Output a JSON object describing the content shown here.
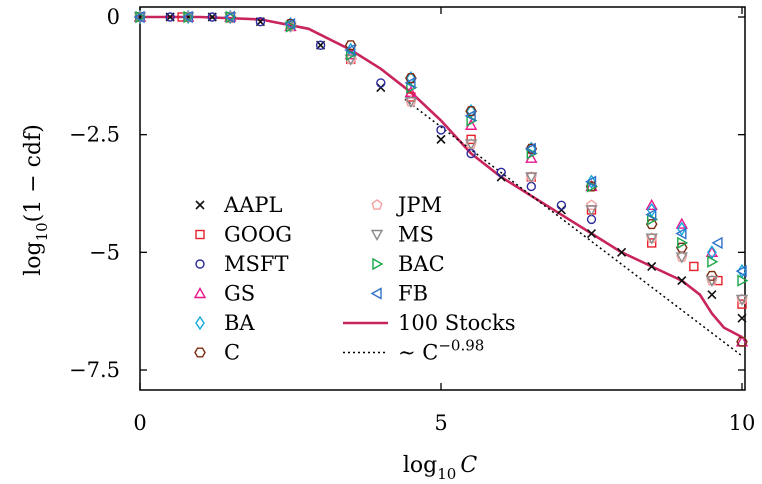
{
  "chart_data": {
    "type": "scatter",
    "xlabel_main": "log",
    "xlabel_sub": "10",
    "xlabel_var": "C",
    "ylabel_main": "log",
    "ylabel_sub": "10",
    "ylabel_rest": "(1 − cdf)",
    "xlim": [
      0,
      10
    ],
    "ylim": [
      -8.0,
      0.2
    ],
    "x_ticks": [
      {
        "v": 0,
        "label": "0"
      },
      {
        "v": 5,
        "label": "5"
      },
      {
        "v": 10,
        "label": "10"
      }
    ],
    "y_ticks": [
      {
        "v": 0,
        "label": "0"
      },
      {
        "v": -2.5,
        "label": "−2.5"
      },
      {
        "v": -5,
        "label": "−5"
      },
      {
        "v": -7.5,
        "label": "−7.5"
      }
    ],
    "grid": false,
    "legend_placement": "bottom-left",
    "series": [
      {
        "name": "AAPL",
        "marker": "x",
        "color": "#111111",
        "points": [
          [
            0,
            0
          ],
          [
            0.5,
            0
          ],
          [
            0.8,
            0
          ],
          [
            1.2,
            0
          ],
          [
            2,
            -0.1
          ],
          [
            3,
            -0.6
          ],
          [
            4,
            -1.5
          ],
          [
            5,
            -2.6
          ],
          [
            6,
            -3.4
          ],
          [
            7,
            -4.1
          ],
          [
            7.5,
            -4.6
          ],
          [
            8,
            -5.0
          ],
          [
            8.5,
            -5.3
          ],
          [
            9,
            -5.6
          ],
          [
            9.5,
            -5.9
          ],
          [
            10,
            -6.4
          ]
        ]
      },
      {
        "name": "GOOG",
        "marker": "square",
        "color": "#e8202a",
        "points": [
          [
            0,
            0
          ],
          [
            0.7,
            0
          ],
          [
            1.5,
            -0.02
          ],
          [
            2.5,
            -0.2
          ],
          [
            3.5,
            -0.9
          ],
          [
            4.5,
            -1.7
          ],
          [
            5.5,
            -2.6
          ],
          [
            6.5,
            -3.4
          ],
          [
            7.5,
            -4.1
          ],
          [
            8.5,
            -4.8
          ],
          [
            9.2,
            -5.3
          ],
          [
            9.6,
            -5.6
          ],
          [
            10,
            -6.1
          ]
        ]
      },
      {
        "name": "MSFT",
        "marker": "circle",
        "color": "#2b2a9e",
        "points": [
          [
            0,
            0
          ],
          [
            0.5,
            0
          ],
          [
            1.2,
            0
          ],
          [
            2,
            -0.1
          ],
          [
            3,
            -0.6
          ],
          [
            4,
            -1.4
          ],
          [
            5,
            -2.4
          ],
          [
            5.5,
            -2.9
          ],
          [
            6,
            -3.3
          ],
          [
            6.5,
            -3.6
          ],
          [
            7,
            -4.0
          ],
          [
            7.5,
            -4.3
          ]
        ]
      },
      {
        "name": "GS",
        "marker": "triangle-up",
        "color": "#e8178a",
        "points": [
          [
            0,
            0
          ],
          [
            0.8,
            0
          ],
          [
            1.5,
            0
          ],
          [
            2.5,
            -0.2
          ],
          [
            3.5,
            -0.8
          ],
          [
            4.5,
            -1.6
          ],
          [
            5.5,
            -2.3
          ],
          [
            6.5,
            -3.0
          ],
          [
            7.5,
            -3.6
          ],
          [
            8.5,
            -4.0
          ],
          [
            9,
            -4.4
          ],
          [
            9.5,
            -5.0
          ],
          [
            10,
            -6.9
          ]
        ]
      },
      {
        "name": "BA",
        "marker": "diamond",
        "color": "#15a8e0",
        "points": [
          [
            0,
            0
          ],
          [
            0.8,
            0
          ],
          [
            1.5,
            0
          ],
          [
            2.5,
            -0.15
          ],
          [
            3.5,
            -0.7
          ],
          [
            4.5,
            -1.3
          ],
          [
            5.5,
            -2.0
          ],
          [
            6.5,
            -2.8
          ],
          [
            7.5,
            -3.5
          ],
          [
            8.5,
            -4.1
          ],
          [
            9,
            -4.5
          ],
          [
            9.5,
            -5.0
          ],
          [
            10,
            -5.4
          ]
        ]
      },
      {
        "name": "C",
        "marker": "hexagon",
        "color": "#7a2a0e",
        "points": [
          [
            0,
            0
          ],
          [
            0.8,
            0
          ],
          [
            1.5,
            0
          ],
          [
            2.5,
            -0.15
          ],
          [
            3.5,
            -0.6
          ],
          [
            4.5,
            -1.3
          ],
          [
            5.5,
            -2.0
          ],
          [
            6.5,
            -2.8
          ],
          [
            7.5,
            -3.6
          ],
          [
            8.5,
            -4.4
          ],
          [
            9,
            -4.9
          ],
          [
            9.5,
            -5.5
          ],
          [
            10,
            -6.9
          ]
        ]
      },
      {
        "name": "JPM",
        "marker": "pentagon",
        "color": "#f2a0a0",
        "points": [
          [
            0,
            0
          ],
          [
            0.8,
            0
          ],
          [
            1.5,
            0
          ],
          [
            2.5,
            -0.2
          ],
          [
            3.5,
            -0.9
          ],
          [
            4.5,
            -1.8
          ],
          [
            5.5,
            -2.7
          ],
          [
            6.5,
            -3.4
          ],
          [
            7.5,
            -4.0
          ],
          [
            8.5,
            -4.7
          ],
          [
            9,
            -5.1
          ],
          [
            9.5,
            -5.6
          ],
          [
            10,
            -6.0
          ]
        ]
      },
      {
        "name": "MS",
        "marker": "triangle-down",
        "color": "#8a8a8a",
        "points": [
          [
            0,
            0
          ],
          [
            0.8,
            0
          ],
          [
            1.5,
            0
          ],
          [
            2.5,
            -0.2
          ],
          [
            3.5,
            -0.9
          ],
          [
            4.5,
            -1.8
          ],
          [
            5.5,
            -2.7
          ],
          [
            6.5,
            -3.4
          ],
          [
            7.5,
            -4.1
          ],
          [
            8.5,
            -4.7
          ],
          [
            9,
            -5.1
          ],
          [
            9.5,
            -5.6
          ],
          [
            10,
            -6.0
          ]
        ]
      },
      {
        "name": "BAC",
        "marker": "triangle-right",
        "color": "#1aa64a",
        "points": [
          [
            0,
            0
          ],
          [
            0.8,
            0
          ],
          [
            1.5,
            0
          ],
          [
            2.5,
            -0.2
          ],
          [
            3.5,
            -0.8
          ],
          [
            4.5,
            -1.5
          ],
          [
            5.5,
            -2.2
          ],
          [
            6.5,
            -2.9
          ],
          [
            7.5,
            -3.6
          ],
          [
            8.5,
            -4.3
          ],
          [
            9,
            -4.8
          ],
          [
            9.5,
            -5.2
          ],
          [
            10,
            -5.6
          ]
        ]
      },
      {
        "name": "FB",
        "marker": "triangle-left",
        "color": "#2f72c9",
        "points": [
          [
            0,
            0
          ],
          [
            0.8,
            0
          ],
          [
            1.5,
            0
          ],
          [
            2.5,
            -0.15
          ],
          [
            3.5,
            -0.7
          ],
          [
            4.5,
            -1.4
          ],
          [
            5.5,
            -2.1
          ],
          [
            6.5,
            -2.8
          ],
          [
            7.5,
            -3.5
          ],
          [
            8.5,
            -4.2
          ],
          [
            9,
            -4.6
          ],
          [
            9.6,
            -4.8
          ],
          [
            10,
            -5.4
          ]
        ]
      }
    ],
    "line_series": [
      {
        "name": "100 Stocks",
        "style": "solid",
        "color": "#c8245e",
        "points": [
          [
            0,
            0
          ],
          [
            1,
            0
          ],
          [
            2,
            -0.05
          ],
          [
            2.8,
            -0.25
          ],
          [
            3.5,
            -0.7
          ],
          [
            4,
            -1.1
          ],
          [
            4.5,
            -1.6
          ],
          [
            5,
            -2.2
          ],
          [
            5.5,
            -2.9
          ],
          [
            6,
            -3.4
          ],
          [
            6.5,
            -3.8
          ],
          [
            7,
            -4.2
          ],
          [
            7.5,
            -4.6
          ],
          [
            8,
            -5.0
          ],
          [
            8.5,
            -5.3
          ],
          [
            9,
            -5.6
          ],
          [
            9.3,
            -5.9
          ],
          [
            9.5,
            -6.3
          ],
          [
            9.7,
            -6.6
          ],
          [
            10,
            -6.8
          ]
        ]
      },
      {
        "name": "∼ C",
        "name_sup": "−0.98",
        "style": "dotted",
        "color": "#000000",
        "points": [
          [
            4.4,
            -1.75
          ],
          [
            10,
            -7.2
          ]
        ]
      }
    ]
  }
}
